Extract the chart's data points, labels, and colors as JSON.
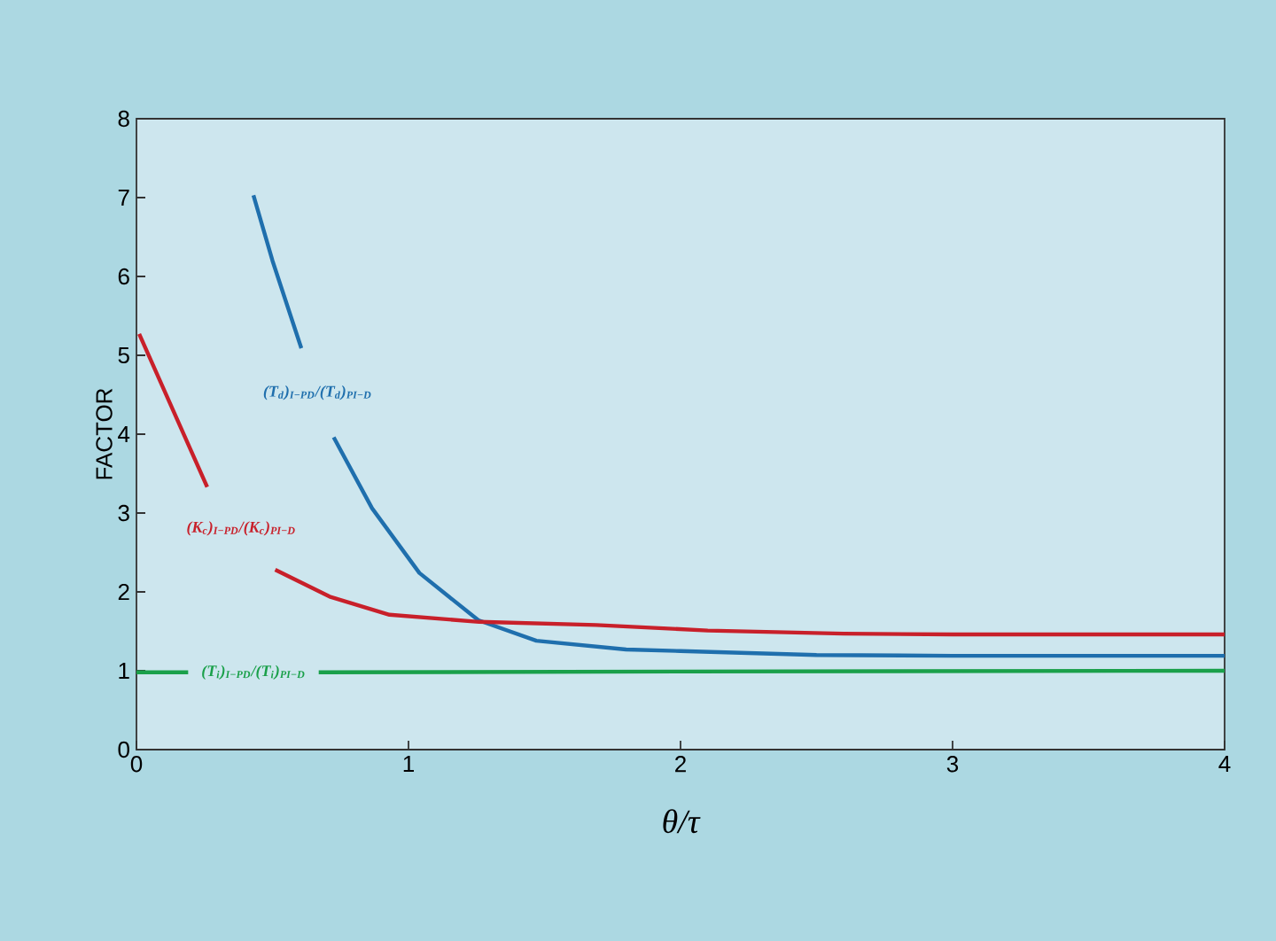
{
  "chart_data": {
    "type": "line",
    "xlabel": "θ/τ",
    "ylabel": "FACTOR",
    "xlim": [
      0,
      4
    ],
    "ylim": [
      0,
      8
    ],
    "xticks": [
      0,
      1,
      2,
      3,
      4
    ],
    "yticks": [
      0,
      1,
      2,
      3,
      4,
      5,
      6,
      7,
      8
    ],
    "series": [
      {
        "name": "(T$_{d}$)$_{I−PD}$/(T$_{d}$)$_{PI−D}$",
        "color": "#1f6fad",
        "x": [
          0.43,
          0.5,
          0.606,
          0.66,
          0.725,
          0.866,
          1.04,
          1.257,
          1.47,
          1.8,
          2.0,
          2.5,
          3.0,
          4.0
        ],
        "values": [
          7.03,
          6.2,
          5.09,
          null,
          3.96,
          3.06,
          2.24,
          1.64,
          1.38,
          1.27,
          1.25,
          1.2,
          1.19,
          1.19
        ]
      },
      {
        "name": "(K$_{c}$)$_{I−PD}$/(K$_{c}$)$_{PI−D}$",
        "color": "#c8202a",
        "x": [
          0.01,
          0.26,
          0.38,
          0.51,
          0.71,
          0.93,
          1.26,
          1.69,
          2.1,
          2.6,
          3.0,
          4.0
        ],
        "values": [
          5.27,
          3.33,
          null,
          2.28,
          1.94,
          1.71,
          1.62,
          1.58,
          1.51,
          1.47,
          1.46,
          1.46
        ]
      },
      {
        "name": "(T$_{i}$)$_{I−PD}$/(T$_{i}$)$_{PI−D}$",
        "color": "#1aa04a",
        "x": [
          0.0,
          0.19,
          0.43,
          0.67,
          2.0,
          4.0
        ],
        "values": [
          0.98,
          0.98,
          null,
          0.98,
          0.99,
          1.0
        ]
      }
    ]
  }
}
